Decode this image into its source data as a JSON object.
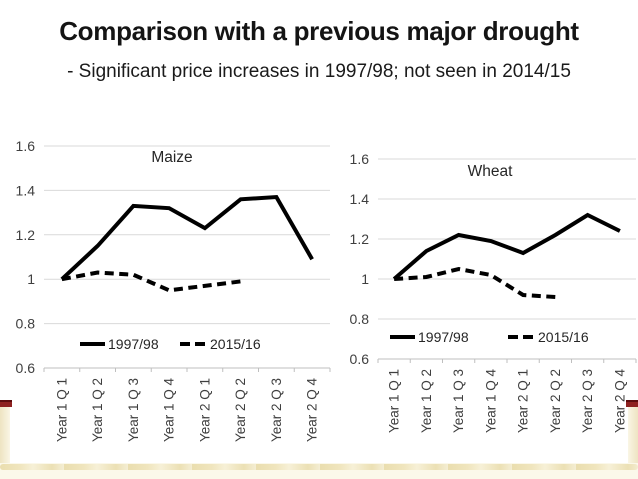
{
  "slide": {
    "title": "Comparison with a previous major drought",
    "subtitle": "- Significant price increases in 1997/98; not seen in 2014/15"
  },
  "colors": {
    "accent_bar": "#8E2120",
    "accent_bar_dark": "#5C0C0E",
    "border_cream": "#F5EFD8",
    "ornament_gold": "#E7D9A4",
    "gridline": "#D9D9D9",
    "axis": "#BFBFBF",
    "tick_text": "#3F3F3F",
    "series_line": "#000000",
    "chart_text": "#262626"
  },
  "chart_data": [
    {
      "type": "line",
      "title": "Maize",
      "categories": [
        "Year 1 Q 1",
        "Year 1 Q 2",
        "Year 1 Q 3",
        "Year 1 Q 4",
        "Year 2 Q 1",
        "Year 2 Q 2",
        "Year 2 Q 3",
        "Year 2 Q 4"
      ],
      "series": [
        {
          "name": "1997/98",
          "line_style": "solid",
          "color": "#000000",
          "values": [
            1.0,
            1.15,
            1.33,
            1.32,
            1.23,
            1.36,
            1.37,
            1.09
          ]
        },
        {
          "name": "2015/16",
          "line_style": "dashed",
          "color": "#000000",
          "values": [
            1.0,
            1.03,
            1.02,
            0.95,
            0.97,
            0.99,
            null,
            null
          ]
        }
      ],
      "xlabel": "",
      "ylabel": "",
      "ylim": [
        0.6,
        1.6
      ],
      "yticks": [
        0.6,
        0.8,
        1,
        1.2,
        1.4,
        1.6
      ],
      "grid": true,
      "legend_position": "bottom-inside"
    },
    {
      "type": "line",
      "title": "Wheat",
      "categories": [
        "Year 1 Q 1",
        "Year 1 Q 2",
        "Year 1 Q 3",
        "Year 1 Q 4",
        "Year 2 Q 1",
        "Year 2 Q 2",
        "Year 2 Q 3",
        "Year 2 Q 4"
      ],
      "series": [
        {
          "name": "1997/98",
          "line_style": "solid",
          "color": "#000000",
          "values": [
            1.0,
            1.14,
            1.22,
            1.19,
            1.13,
            1.22,
            1.32,
            1.24
          ]
        },
        {
          "name": "2015/16",
          "line_style": "dashed",
          "color": "#000000",
          "values": [
            1.0,
            1.01,
            1.05,
            1.02,
            0.92,
            0.91,
            null,
            null
          ]
        }
      ],
      "xlabel": "",
      "ylabel": "",
      "ylim": [
        0.6,
        1.6
      ],
      "yticks": [
        0.6,
        0.8,
        1,
        1.2,
        1.4,
        1.6
      ],
      "grid": true,
      "legend_position": "bottom-inside"
    }
  ]
}
